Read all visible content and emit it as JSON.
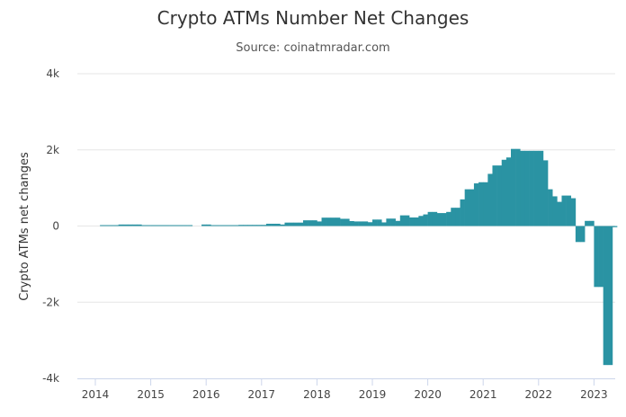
{
  "chart_data": {
    "type": "bar",
    "title": "Crypto ATMs Number Net Changes",
    "subtitle": "Source: coinatmradar.com",
    "ylabel": "Crypto ATMs net changes",
    "xlabel": "",
    "ylim": [
      -4000,
      4000
    ],
    "yticks": [
      4000,
      2000,
      0,
      -2000,
      -4000
    ],
    "ytick_labels": [
      "4k",
      "2k",
      "0",
      "-2k",
      "-4k"
    ],
    "xticks": [
      "2014",
      "2015",
      "2016",
      "2017",
      "2018",
      "2019",
      "2020",
      "2021",
      "2022",
      "2023"
    ],
    "x_start": "2014-01",
    "x_interval": "month",
    "grid": "horizontal",
    "legend": "none",
    "color": "#2a93a3",
    "values": [
      0,
      10,
      10,
      10,
      10,
      40,
      40,
      40,
      40,
      40,
      10,
      10,
      10,
      10,
      10,
      10,
      10,
      10,
      10,
      10,
      10,
      0,
      0,
      40,
      40,
      10,
      10,
      10,
      10,
      10,
      10,
      30,
      30,
      30,
      30,
      30,
      30,
      60,
      60,
      60,
      40,
      90,
      90,
      90,
      90,
      150,
      150,
      150,
      120,
      220,
      220,
      220,
      220,
      190,
      190,
      130,
      120,
      120,
      120,
      100,
      170,
      170,
      95,
      195,
      195,
      135,
      280,
      280,
      225,
      225,
      265,
      305,
      370,
      370,
      340,
      340,
      370,
      480,
      480,
      700,
      965,
      965,
      1120,
      1150,
      1150,
      1370,
      1590,
      1590,
      1740,
      1800,
      2025,
      2025,
      1975,
      1975,
      1975,
      1975,
      1975,
      1725,
      965,
      780,
      635,
      800,
      800,
      730,
      -420,
      -420,
      135,
      135,
      -1600,
      -1600,
      -3650,
      -3650,
      -30
    ]
  }
}
